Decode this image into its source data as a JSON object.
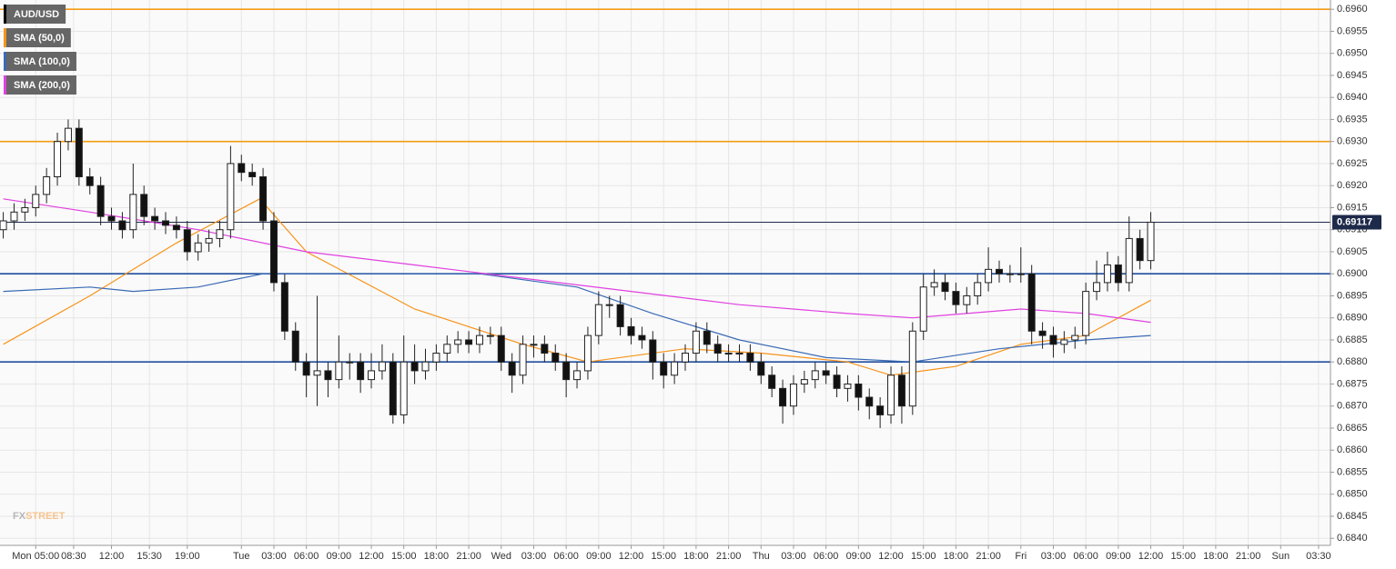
{
  "chart_data": {
    "type": "candlestick",
    "grid": true,
    "xlim": [
      1.7,
      124.6
    ],
    "ylim": [
      0.68384,
      0.69621
    ],
    "yticks": [
      {
        "value": 0.684,
        "label": "0.6840"
      },
      {
        "value": 0.6845,
        "label": "0.6845"
      },
      {
        "value": 0.685,
        "label": "0.6850"
      },
      {
        "value": 0.6855,
        "label": "0.6855"
      },
      {
        "value": 0.686,
        "label": "0.6860"
      },
      {
        "value": 0.6865,
        "label": "0.6865"
      },
      {
        "value": 0.687,
        "label": "0.6870"
      },
      {
        "value": 0.6875,
        "label": "0.6875"
      },
      {
        "value": 0.688,
        "label": "0.6880"
      },
      {
        "value": 0.6885,
        "label": "0.6885"
      },
      {
        "value": 0.689,
        "label": "0.6890"
      },
      {
        "value": 0.6895,
        "label": "0.6895"
      },
      {
        "value": 0.69,
        "label": "0.6900"
      },
      {
        "value": 0.6905,
        "label": "0.6905"
      },
      {
        "value": 0.691,
        "label": "0.6910"
      },
      {
        "value": 0.6915,
        "label": "0.6915"
      },
      {
        "value": 0.692,
        "label": "0.6920"
      },
      {
        "value": 0.6925,
        "label": "0.6925"
      },
      {
        "value": 0.693,
        "label": "0.6930"
      },
      {
        "value": 0.6935,
        "label": "0.6935"
      },
      {
        "value": 0.694,
        "label": "0.6940"
      },
      {
        "value": 0.6945,
        "label": "0.6945"
      },
      {
        "value": 0.695,
        "label": "0.6950"
      },
      {
        "value": 0.6955,
        "label": "0.6955"
      },
      {
        "value": 0.696,
        "label": "0.6960"
      }
    ],
    "xticks": [
      {
        "value": 5,
        "label": "Mon 05:00"
      },
      {
        "value": 8.5,
        "label": "08:30"
      },
      {
        "value": 12,
        "label": "12:00"
      },
      {
        "value": 15.5,
        "label": "15:30"
      },
      {
        "value": 19,
        "label": "19:00"
      },
      {
        "value": 24,
        "label": "Tue"
      },
      {
        "value": 27,
        "label": "03:00"
      },
      {
        "value": 30,
        "label": "06:00"
      },
      {
        "value": 33,
        "label": "09:00"
      },
      {
        "value": 36,
        "label": "12:00"
      },
      {
        "value": 39,
        "label": "15:00"
      },
      {
        "value": 42,
        "label": "18:00"
      },
      {
        "value": 45,
        "label": "21:00"
      },
      {
        "value": 48,
        "label": "Wed"
      },
      {
        "value": 51,
        "label": "03:00"
      },
      {
        "value": 54,
        "label": "06:00"
      },
      {
        "value": 57,
        "label": "09:00"
      },
      {
        "value": 60,
        "label": "12:00"
      },
      {
        "value": 63,
        "label": "15:00"
      },
      {
        "value": 66,
        "label": "18:00"
      },
      {
        "value": 69,
        "label": "21:00"
      },
      {
        "value": 72,
        "label": "Thu"
      },
      {
        "value": 75,
        "label": "03:00"
      },
      {
        "value": 78,
        "label": "06:00"
      },
      {
        "value": 81,
        "label": "09:00"
      },
      {
        "value": 84,
        "label": "12:00"
      },
      {
        "value": 87,
        "label": "15:00"
      },
      {
        "value": 90,
        "label": "18:00"
      },
      {
        "value": 93,
        "label": "21:00"
      },
      {
        "value": 96,
        "label": "Fri"
      },
      {
        "value": 99,
        "label": "03:00"
      },
      {
        "value": 102,
        "label": "06:00"
      },
      {
        "value": 105,
        "label": "09:00"
      },
      {
        "value": 108,
        "label": "12:00"
      },
      {
        "value": 111,
        "label": "15:00"
      },
      {
        "value": 114,
        "label": "18:00"
      },
      {
        "value": 117,
        "label": "21:00"
      },
      {
        "value": 120,
        "label": "Sun"
      },
      {
        "value": 123.5,
        "label": "03:30"
      }
    ],
    "series": [
      {
        "name": "AUD/USD",
        "type": "candlestick",
        "color": "#000000",
        "x": [
          2,
          3,
          4,
          5,
          6,
          7,
          8,
          9,
          10,
          11,
          12,
          13,
          14,
          15,
          16,
          17,
          18,
          19,
          20,
          21,
          22,
          23,
          24,
          25,
          26,
          27,
          28,
          29,
          30,
          31,
          32,
          33,
          34,
          35,
          36,
          37,
          38,
          39,
          40,
          41,
          42,
          43,
          44,
          45,
          46,
          47,
          48,
          49,
          50,
          51,
          52,
          53,
          54,
          55,
          56,
          57,
          58,
          59,
          60,
          61,
          62,
          63,
          64,
          65,
          66,
          67,
          68,
          69,
          70,
          71,
          72,
          73,
          74,
          75,
          76,
          77,
          78,
          79,
          80,
          81,
          82,
          83,
          84,
          85,
          86,
          87,
          88,
          89,
          90,
          91,
          92,
          93,
          94,
          95,
          96,
          97,
          98,
          99,
          100,
          101,
          102,
          103,
          104,
          105,
          106,
          107,
          108
        ],
        "open": [
          0.691,
          0.6912,
          0.6914,
          0.6915,
          0.6918,
          0.6922,
          0.693,
          0.6933,
          0.6922,
          0.692,
          0.6913,
          0.6912,
          0.691,
          0.6918,
          0.6913,
          0.6912,
          0.6911,
          0.691,
          0.6905,
          0.6907,
          0.6908,
          0.691,
          0.6925,
          0.6923,
          0.6922,
          0.6912,
          0.6898,
          0.6887,
          0.688,
          0.6877,
          0.6878,
          0.6876,
          0.688,
          0.688,
          0.6876,
          0.6878,
          0.688,
          0.6868,
          0.688,
          0.6878,
          0.688,
          0.6882,
          0.6884,
          0.6885,
          0.6884,
          0.6886,
          0.6886,
          0.688,
          0.6877,
          0.6884,
          0.6884,
          0.6882,
          0.688,
          0.6876,
          0.6878,
          0.6886,
          0.6893,
          0.6893,
          0.6888,
          0.6886,
          0.6885,
          0.688,
          0.6877,
          0.688,
          0.6882,
          0.6887,
          0.6884,
          0.6882,
          0.6882,
          0.6882,
          0.688,
          0.6877,
          0.6874,
          0.687,
          0.6875,
          0.6876,
          0.6878,
          0.6877,
          0.6874,
          0.6875,
          0.6872,
          0.687,
          0.6868,
          0.6877,
          0.687,
          0.6887,
          0.6897,
          0.6898,
          0.6896,
          0.6893,
          0.6895,
          0.6898,
          0.6901,
          0.69,
          0.69,
          0.69,
          0.6887,
          0.6886,
          0.6884,
          0.6885,
          0.6886,
          0.6896,
          0.6898,
          0.6902,
          0.6898,
          0.6908,
          0.6903
        ],
        "high": [
          0.6914,
          0.6916,
          0.6917,
          0.692,
          0.6924,
          0.6932,
          0.6935,
          0.6935,
          0.6924,
          0.6922,
          0.6915,
          0.6914,
          0.6925,
          0.692,
          0.6915,
          0.6914,
          0.6913,
          0.6912,
          0.6909,
          0.691,
          0.6912,
          0.6929,
          0.6927,
          0.6925,
          0.6924,
          0.6914,
          0.69,
          0.6889,
          0.6882,
          0.6895,
          0.688,
          0.6886,
          0.6882,
          0.6882,
          0.6882,
          0.6884,
          0.6882,
          0.6886,
          0.6884,
          0.6883,
          0.6884,
          0.6886,
          0.6887,
          0.6887,
          0.6888,
          0.6888,
          0.6888,
          0.6882,
          0.6886,
          0.6886,
          0.6886,
          0.6884,
          0.6882,
          0.688,
          0.6888,
          0.6896,
          0.6895,
          0.6895,
          0.689,
          0.6888,
          0.6887,
          0.6882,
          0.6882,
          0.6884,
          0.6889,
          0.6889,
          0.6886,
          0.6884,
          0.6884,
          0.6884,
          0.6882,
          0.6879,
          0.6876,
          0.6877,
          0.6878,
          0.688,
          0.688,
          0.6879,
          0.6877,
          0.6877,
          0.6874,
          0.6872,
          0.6879,
          0.6879,
          0.6889,
          0.69,
          0.6901,
          0.69,
          0.6898,
          0.6897,
          0.69,
          0.6906,
          0.6903,
          0.6902,
          0.6906,
          0.6902,
          0.6889,
          0.6888,
          0.6887,
          0.6888,
          0.6898,
          0.6903,
          0.6905,
          0.6904,
          0.6913,
          0.691,
          0.6914
        ],
        "low": [
          0.6908,
          0.691,
          0.6912,
          0.6913,
          0.6916,
          0.692,
          0.6928,
          0.692,
          0.6918,
          0.6911,
          0.691,
          0.6908,
          0.6908,
          0.6911,
          0.691,
          0.6909,
          0.6908,
          0.6903,
          0.6903,
          0.6905,
          0.6906,
          0.6908,
          0.6921,
          0.692,
          0.691,
          0.6896,
          0.6885,
          0.6878,
          0.6872,
          0.687,
          0.6872,
          0.6874,
          0.6876,
          0.6873,
          0.6874,
          0.6876,
          0.6866,
          0.6866,
          0.6875,
          0.6876,
          0.6878,
          0.688,
          0.6882,
          0.6882,
          0.6882,
          0.6884,
          0.6878,
          0.6873,
          0.6875,
          0.6881,
          0.688,
          0.6878,
          0.6872,
          0.6874,
          0.6876,
          0.6884,
          0.689,
          0.6886,
          0.6884,
          0.6883,
          0.6876,
          0.6874,
          0.6875,
          0.6878,
          0.688,
          0.6882,
          0.688,
          0.688,
          0.688,
          0.6878,
          0.6875,
          0.6872,
          0.6866,
          0.6868,
          0.6873,
          0.6874,
          0.6875,
          0.6872,
          0.6871,
          0.6869,
          0.6867,
          0.6865,
          0.6866,
          0.6866,
          0.6868,
          0.6885,
          0.6895,
          0.6894,
          0.6891,
          0.6891,
          0.6893,
          0.6896,
          0.6898,
          0.6898,
          0.6898,
          0.6884,
          0.6883,
          0.6881,
          0.6882,
          0.6883,
          0.6884,
          0.6894,
          0.6896,
          0.6896,
          0.6896,
          0.6901,
          0.6901
        ],
        "close": [
          0.6912,
          0.6914,
          0.6915,
          0.6918,
          0.6922,
          0.693,
          0.6933,
          0.6922,
          0.692,
          0.6913,
          0.6912,
          0.691,
          0.6918,
          0.6913,
          0.6912,
          0.6911,
          0.691,
          0.6905,
          0.6907,
          0.6908,
          0.691,
          0.6925,
          0.6923,
          0.6922,
          0.6912,
          0.6898,
          0.6887,
          0.688,
          0.6877,
          0.6878,
          0.6876,
          0.688,
          0.688,
          0.6876,
          0.6878,
          0.688,
          0.6868,
          0.688,
          0.6878,
          0.688,
          0.6882,
          0.6884,
          0.6885,
          0.6884,
          0.6886,
          0.6886,
          0.688,
          0.6877,
          0.6884,
          0.6884,
          0.6882,
          0.688,
          0.6876,
          0.6878,
          0.6886,
          0.6893,
          0.6893,
          0.6888,
          0.6886,
          0.6885,
          0.688,
          0.6877,
          0.688,
          0.6882,
          0.6887,
          0.6884,
          0.6882,
          0.6882,
          0.6882,
          0.688,
          0.6877,
          0.6874,
          0.687,
          0.6875,
          0.6876,
          0.6878,
          0.6877,
          0.6874,
          0.6875,
          0.6872,
          0.687,
          0.6868,
          0.6877,
          0.687,
          0.6887,
          0.6897,
          0.6898,
          0.6896,
          0.6893,
          0.6895,
          0.6898,
          0.6901,
          0.69,
          0.69,
          0.69,
          0.6887,
          0.6886,
          0.6884,
          0.6885,
          0.6886,
          0.6896,
          0.6898,
          0.6902,
          0.6898,
          0.6908,
          0.6903,
          0.69117
        ]
      },
      {
        "name": "SMA (50,0)",
        "type": "line",
        "color": "#f7931a",
        "x": [
          2,
          10,
          18,
          25.7,
          30,
          40,
          50,
          56,
          65,
          72,
          80,
          84,
          90,
          96,
          102,
          108
        ],
        "values": [
          0.6884,
          0.6895,
          0.6907,
          0.6917,
          0.6905,
          0.6892,
          0.6884,
          0.688,
          0.6883,
          0.6882,
          0.688,
          0.6877,
          0.6879,
          0.6884,
          0.6886,
          0.6894
        ]
      },
      {
        "name": "SMA (100,0)",
        "type": "line",
        "color": "#3a6ab5",
        "x": [
          2,
          10,
          14,
          20,
          26,
          30,
          46,
          55,
          62,
          70,
          78,
          86,
          94,
          102,
          108
        ],
        "values": [
          0.6896,
          0.6897,
          0.6896,
          0.6897,
          0.69,
          0.69,
          0.69,
          0.6897,
          0.6891,
          0.6885,
          0.6881,
          0.688,
          0.6883,
          0.6885,
          0.6886
        ]
      },
      {
        "name": "SMA (200,0)",
        "type": "line",
        "color": "#e040e0",
        "x": [
          2,
          10,
          20,
          30,
          40,
          50,
          60,
          70,
          80,
          86,
          96,
          102,
          108
        ],
        "values": [
          0.6917,
          0.6914,
          0.691,
          0.6905,
          0.6902,
          0.6899,
          0.6896,
          0.6893,
          0.6891,
          0.689,
          0.6892,
          0.6891,
          0.6889
        ]
      }
    ],
    "hlines": [
      {
        "value": 0.696,
        "color": "#f39c12"
      },
      {
        "value": 0.693,
        "color": "#f39c12"
      },
      {
        "value": 0.69,
        "color": "#1f4e9c"
      },
      {
        "value": 0.688,
        "color": "#1f4e9c"
      }
    ],
    "last_price": 0.69117,
    "last_price_color": "#1e2a4a",
    "watermark": [
      "FX",
      "STREET"
    ]
  }
}
